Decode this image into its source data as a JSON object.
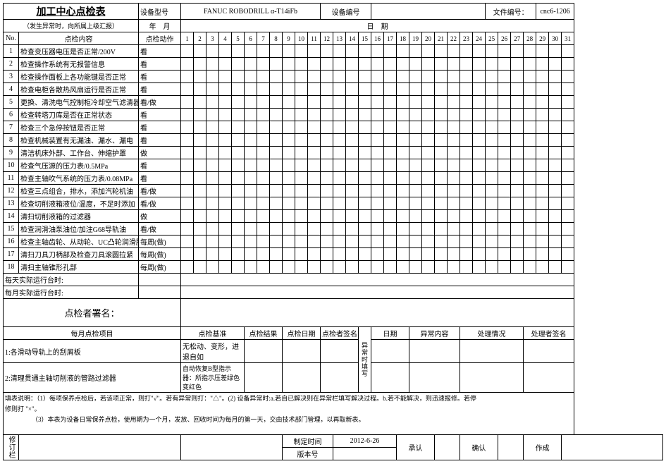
{
  "header": {
    "title": "加工中心点检表",
    "subtitle": "（发生异常时，向所属上级汇报）",
    "device_model_label": "设备型号",
    "device_model": "FANUC ROBODRILL α-T14iFb",
    "device_no_label": "设备编号",
    "device_no": "",
    "doc_no_label": "文件编号：",
    "doc_no": "cnc6-1206",
    "year_month": "年　月",
    "date_label": "日　期"
  },
  "columns": {
    "no": "No.",
    "item": "点检内容",
    "action": "点检动作"
  },
  "days": [
    "1",
    "2",
    "3",
    "4",
    "5",
    "6",
    "7",
    "8",
    "9",
    "10",
    "11",
    "12",
    "13",
    "14",
    "15",
    "16",
    "17",
    "18",
    "19",
    "20",
    "21",
    "22",
    "23",
    "24",
    "25",
    "26",
    "27",
    "28",
    "29",
    "30",
    "31"
  ],
  "rows": [
    {
      "no": "1",
      "item": "检查变压器电压是否正常/200V",
      "action": "看"
    },
    {
      "no": "2",
      "item": "检查操作系统有无报警信息",
      "action": "看"
    },
    {
      "no": "3",
      "item": "检查操作面板上各功能键是否正常",
      "action": "看"
    },
    {
      "no": "4",
      "item": "检查电柜各散热风扇运行是否正常",
      "action": "看"
    },
    {
      "no": "5",
      "item": "更换、清洗电气控制柜冷却空气滤清器",
      "action": "看/做"
    },
    {
      "no": "6",
      "item": "检查转塔刀库是否在正常状态",
      "action": "看"
    },
    {
      "no": "7",
      "item": "检查三个急停按钮是否正常",
      "action": "看"
    },
    {
      "no": "8",
      "item": "检查机械装置有无漏油、漏水、漏电",
      "action": "看"
    },
    {
      "no": "9",
      "item": "清洁机床外部、工作台、伸缩护罩",
      "action": "做"
    },
    {
      "no": "10",
      "item": "检查气压源的压力表/0.5MPa",
      "action": "看"
    },
    {
      "no": "11",
      "item": "检查主轴吹气系统的压力表/0.08MPa",
      "action": "看"
    },
    {
      "no": "12",
      "item": "检查三点组合，排水，添加汽轮机油",
      "action": "看/做"
    },
    {
      "no": "13",
      "item": "检查切削液箱液位/温度，不足时添加",
      "action": "看/做"
    },
    {
      "no": "14",
      "item": "清扫切削液箱的过滤器",
      "action": "做"
    },
    {
      "no": "15",
      "item": "检查润滑油泵油位/加注G68导轨油",
      "action": "看/做"
    },
    {
      "no": "16",
      "item": "检查主轴齿轮、从动轮、UC凸轮润滑脂",
      "action": "每周(做)"
    },
    {
      "no": "17",
      "item": "清扫刀具刀柄部及检查刀具滚圆拉紧",
      "action": "每周(做)"
    },
    {
      "no": "18",
      "item": "清扫主轴锥形孔部",
      "action": "每周(做)"
    }
  ],
  "extra_rows": [
    "每天实际运行台时:",
    "每月实际运行台时:"
  ],
  "signature_label": "点检者署名：",
  "monthly": {
    "header": [
      "每月点检项目",
      "点检基准",
      "点检结果",
      "点检日期",
      "点检者签名"
    ],
    "anomaly_header": [
      "异常时填写",
      "日期",
      "异常内容",
      "处理情况",
      "处理者签名"
    ],
    "rows": [
      {
        "no": "1:",
        "item": "各滑动导轨上的刮屑板",
        "std": "无松动、变形，进退自如"
      },
      {
        "no": "2:",
        "item": "清理贯通主轴切削液的管路过滤器",
        "std": "自动恢复B型指示器：所指示压差绿色变红色"
      }
    ]
  },
  "notes": [
    "填表说明：（1）每项保养点检后，若该项正常，则打\"√\"。若有异常则打：\"△\"。(2) 设备异常时:a.若自已解决则在异常栏填写解决过程。b.若不能解决，则迅速报修。若停",
    "修则打 \"×\"。",
    "（3）本表为设备日常保养点检，使用期为一个月，发放、回收时间为每月的第一天，交由技术部门管理，以再取新表。"
  ],
  "footer": {
    "side_label": "修订栏",
    "created_label": "制定时间",
    "created_date": "2012-6-26",
    "version_label": "版本号",
    "approve": "承认",
    "confirm": "确认",
    "made": "作成"
  }
}
